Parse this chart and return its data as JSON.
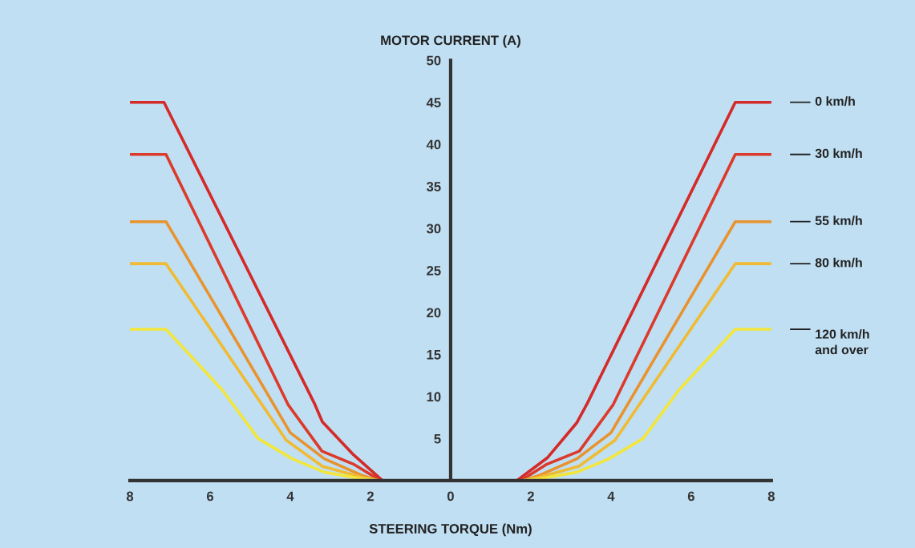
{
  "chart_data": {
    "type": "line",
    "xlabel": "STEERING TORQUE (Nm)",
    "ylabel": "MOTOR CURRENT (A)",
    "xlim": [
      -8,
      8
    ],
    "ylim": [
      0,
      50
    ],
    "xticks": [
      {
        "value": -8,
        "label": "8"
      },
      {
        "value": -6,
        "label": "6"
      },
      {
        "value": -4,
        "label": "4"
      },
      {
        "value": -2,
        "label": "2"
      },
      0,
      2,
      4,
      6,
      8
    ],
    "yticks": [
      5,
      10,
      15,
      20,
      25,
      30,
      35,
      40,
      45,
      50
    ],
    "grid": false,
    "legend": false,
    "marker": "none",
    "line_style": "solid",
    "series": [
      {
        "name": "0 km/h",
        "color": "#d42a28",
        "x": [
          -8,
          -7.15,
          -3.4,
          -3.2,
          -2.45,
          -1.7,
          1.65,
          2.41,
          3.15,
          3.41,
          7.1,
          8
        ],
        "values": [
          45,
          45,
          9.2,
          7,
          3.2,
          0,
          0,
          2.7,
          6.9,
          9.2,
          45,
          45
        ]
      },
      {
        "name": "30 km/h",
        "color": "#dc3a2a",
        "x": [
          -8,
          -7.1,
          -4.05,
          -3.21,
          -2.4,
          -1.75,
          1.75,
          2.38,
          3.21,
          4.05,
          7.1,
          8
        ],
        "values": [
          38.8,
          38.8,
          9,
          3.5,
          1.9,
          0,
          0,
          1.9,
          3.5,
          9,
          38.8,
          38.8
        ]
      },
      {
        "name": "55 km/h",
        "color": "#e8932e",
        "x": [
          -8,
          -7.1,
          -4.0,
          -3.15,
          -2.2,
          -1.8,
          1.8,
          2.2,
          3.15,
          4.0,
          7.1,
          8
        ],
        "values": [
          30.8,
          30.8,
          5.7,
          2.6,
          0.6,
          0,
          0,
          0.6,
          2.6,
          5.7,
          30.8,
          30.8
        ]
      },
      {
        "name": "80 km/h",
        "color": "#f0bb32",
        "x": [
          -8,
          -7.1,
          -4.1,
          -3.2,
          -2.2,
          -1.8,
          1.8,
          2.2,
          3.2,
          4.1,
          7.1,
          8
        ],
        "values": [
          25.8,
          25.8,
          4.8,
          1.7,
          0.4,
          0,
          0,
          0.4,
          1.7,
          4.8,
          25.8,
          25.8
        ]
      },
      {
        "name": "120 km/h\nand over",
        "color": "#f2e63a",
        "x": [
          -8,
          -7.1,
          -5.7,
          -4.8,
          -3.95,
          -3.15,
          -2.2,
          -1.8,
          1.8,
          2.2,
          3.15,
          3.95,
          4.8,
          5.7,
          7.1,
          8
        ],
        "values": [
          18,
          18,
          10.8,
          5,
          2.6,
          1,
          0.2,
          0,
          0,
          0.2,
          1,
          2.6,
          5,
          10.8,
          18,
          18
        ]
      }
    ]
  }
}
